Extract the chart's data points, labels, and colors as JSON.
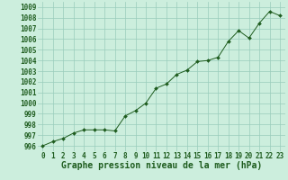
{
  "x": [
    0,
    1,
    2,
    3,
    4,
    5,
    6,
    7,
    8,
    9,
    10,
    11,
    12,
    13,
    14,
    15,
    16,
    17,
    18,
    19,
    20,
    21,
    22,
    23
  ],
  "y": [
    996.0,
    996.4,
    996.7,
    997.2,
    997.5,
    997.5,
    997.5,
    997.4,
    998.8,
    999.3,
    1000.0,
    1001.4,
    1001.8,
    1002.7,
    1003.1,
    1003.9,
    1004.0,
    1004.3,
    1005.8,
    1006.8,
    1006.1,
    1007.5,
    1008.6,
    1008.2
  ],
  "xlabel": "Graphe pression niveau de la mer (hPa)",
  "ylim": [
    995.5,
    1009.5
  ],
  "xlim": [
    -0.5,
    23.5
  ],
  "yticks": [
    996,
    997,
    998,
    999,
    1000,
    1001,
    1002,
    1003,
    1004,
    1005,
    1006,
    1007,
    1008,
    1009
  ],
  "xticks": [
    0,
    1,
    2,
    3,
    4,
    5,
    6,
    7,
    8,
    9,
    10,
    11,
    12,
    13,
    14,
    15,
    16,
    17,
    18,
    19,
    20,
    21,
    22,
    23
  ],
  "line_color": "#1e5c1e",
  "marker_color": "#1e5c1e",
  "bg_color": "#cceedd",
  "grid_color": "#99ccbb",
  "tick_label_color": "#1e5c1e",
  "xlabel_color": "#1e5c1e",
  "xlabel_fontsize": 7.0,
  "tick_fontsize": 5.5
}
